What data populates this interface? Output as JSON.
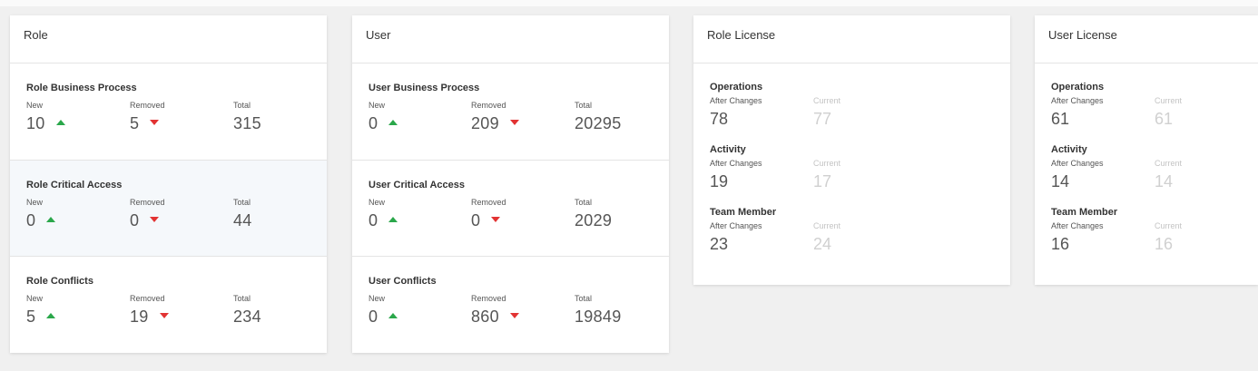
{
  "cards": [
    {
      "title": "Role",
      "labels": {
        "new": "New",
        "removed": "Removed",
        "total": "Total"
      },
      "sections": [
        {
          "title": "Role Business Process",
          "new": "10",
          "removed": "5",
          "total": "315"
        },
        {
          "title": "Role Critical Access",
          "new": "0",
          "removed": "0",
          "total": "44"
        },
        {
          "title": "Role Conflicts",
          "new": "5",
          "removed": "19",
          "total": "234"
        }
      ]
    },
    {
      "title": "User",
      "labels": {
        "new": "New",
        "removed": "Removed",
        "total": "Total"
      },
      "sections": [
        {
          "title": "User Business Process",
          "new": "0",
          "removed": "209",
          "total": "20295"
        },
        {
          "title": "User Critical Access",
          "new": "0",
          "removed": "0",
          "total": "2029"
        },
        {
          "title": "User Conflicts",
          "new": "0",
          "removed": "860",
          "total": "19849"
        }
      ]
    }
  ],
  "licenses": [
    {
      "title": "Role License",
      "labels": {
        "after": "After Changes",
        "current": "Current"
      },
      "groups": [
        {
          "title": "Operations",
          "after": "78",
          "current": "77"
        },
        {
          "title": "Activity",
          "after": "19",
          "current": "17"
        },
        {
          "title": "Team Member",
          "after": "23",
          "current": "24"
        }
      ]
    },
    {
      "title": "User License",
      "labels": {
        "after": "After Changes",
        "current": "Current"
      },
      "groups": [
        {
          "title": "Operations",
          "after": "61",
          "current": "61"
        },
        {
          "title": "Activity",
          "after": "14",
          "current": "14"
        },
        {
          "title": "Team Member",
          "after": "16",
          "current": "16"
        }
      ]
    }
  ],
  "colors": {
    "increase": "#2aa74a",
    "decrease": "#e23333",
    "highlight_bg": "#f5f8fb"
  },
  "icons": {
    "new": "triangle-up-icon",
    "removed": "triangle-down-icon"
  }
}
